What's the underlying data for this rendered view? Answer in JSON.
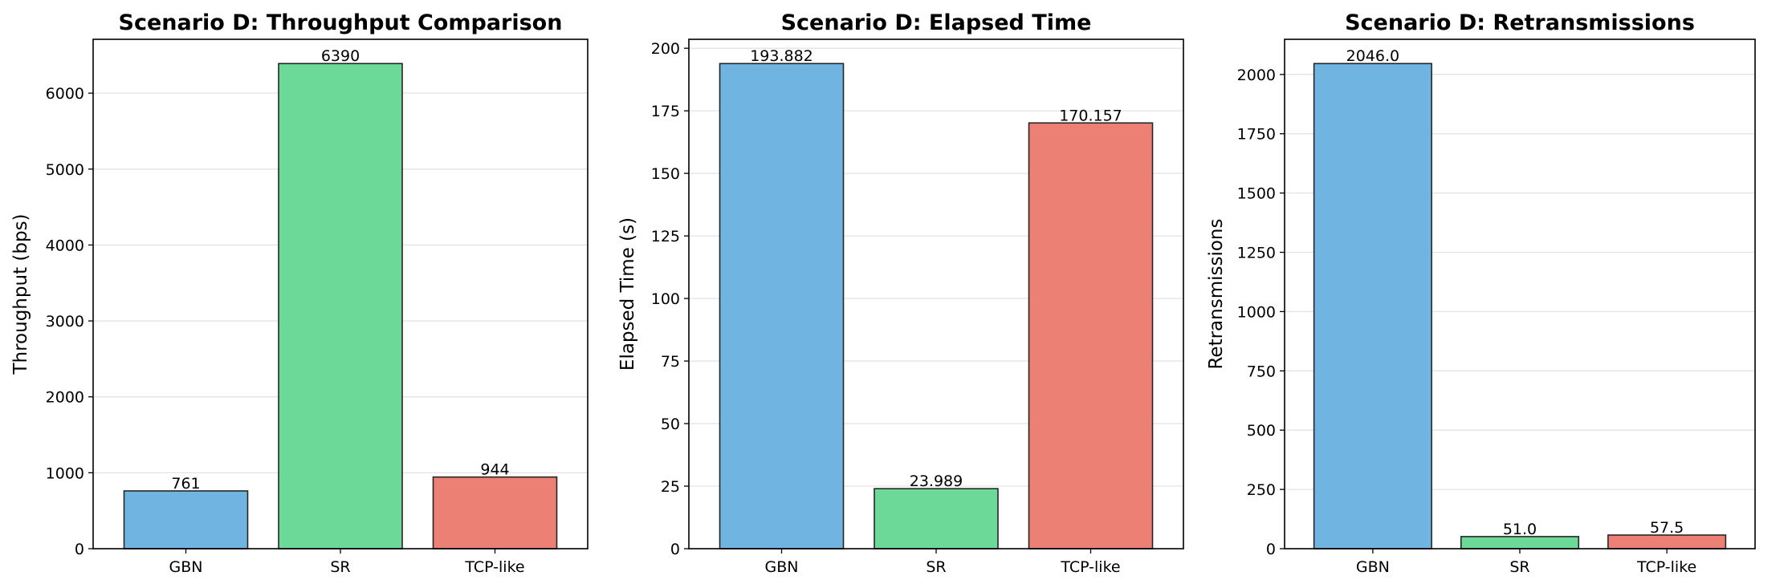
{
  "chart_data": [
    {
      "type": "bar",
      "title": "Scenario D: Throughput Comparison",
      "xlabel": "",
      "ylabel": "Throughput (bps)",
      "categories": [
        "GBN",
        "SR",
        "TCP-like"
      ],
      "values": [
        761,
        6390,
        944
      ],
      "value_labels": [
        "761",
        "6390",
        "944"
      ],
      "colors": [
        "#70b4e2",
        "#6dd998",
        "#ed8074"
      ],
      "ylim": [
        0,
        6709.5
      ],
      "yticks": [
        0,
        1000,
        2000,
        3000,
        4000,
        5000,
        6000
      ],
      "grid": "y"
    },
    {
      "type": "bar",
      "title": "Scenario D: Elapsed Time",
      "xlabel": "",
      "ylabel": "Elapsed Time (s)",
      "categories": [
        "GBN",
        "SR",
        "TCP-like"
      ],
      "values": [
        193.882,
        23.989,
        170.157
      ],
      "value_labels": [
        "193.882",
        "23.989",
        "170.157"
      ],
      "colors": [
        "#70b4e2",
        "#6dd998",
        "#ed8074"
      ],
      "ylim": [
        0,
        203.58
      ],
      "yticks": [
        0,
        25,
        50,
        75,
        100,
        125,
        150,
        175,
        200
      ],
      "grid": "y"
    },
    {
      "type": "bar",
      "title": "Scenario D: Retransmissions",
      "xlabel": "",
      "ylabel": "Retransmissions",
      "categories": [
        "GBN",
        "SR",
        "TCP-like"
      ],
      "values": [
        2046.0,
        51.0,
        57.5
      ],
      "value_labels": [
        "2046.0",
        "51.0",
        "57.5"
      ],
      "colors": [
        "#70b4e2",
        "#6dd998",
        "#ed8074"
      ],
      "ylim": [
        0,
        2148.3
      ],
      "yticks": [
        0,
        250,
        500,
        750,
        1000,
        1250,
        1500,
        1750,
        2000
      ],
      "grid": "y"
    }
  ]
}
